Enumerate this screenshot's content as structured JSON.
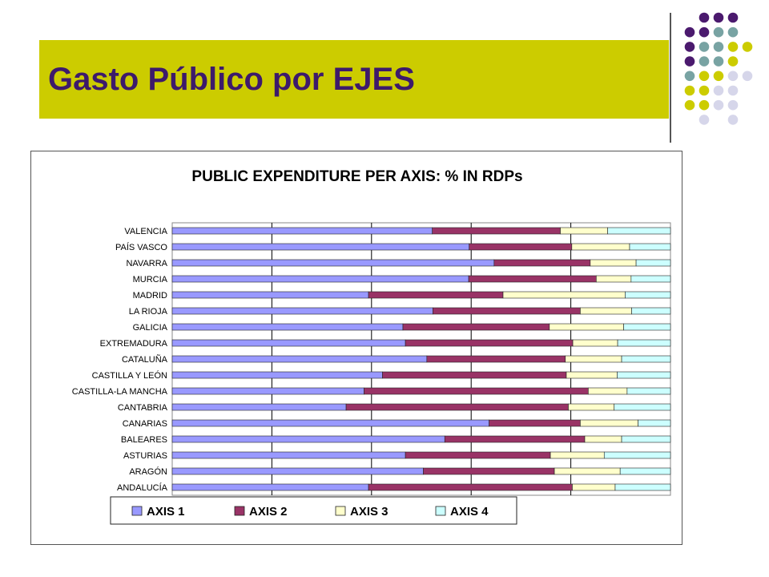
{
  "slide": {
    "title": "Gasto Público por EJES",
    "colors": {
      "band": "#cccc00",
      "title": "#3d1a6b",
      "dot_purple": "#4b1a6e",
      "dot_teal": "#78a3a3",
      "dot_yellow": "#cccc00",
      "dot_lavender": "#d6d6ea"
    }
  },
  "chart_data": {
    "type": "bar",
    "orientation": "horizontal",
    "stacked": "percent",
    "title": "PUBLIC EXPENDITURE PER AXIS: % IN RDPs",
    "xlim": [
      0,
      100
    ],
    "grid": true,
    "legend": "bottom",
    "categories": [
      "VALENCIA",
      "PAÍS VASCO",
      "NAVARRA",
      "MURCIA",
      "MADRID",
      "LA RIOJA",
      "GALICIA",
      "EXTREMADURA",
      "CATALUÑA",
      "CASTILLA Y LEÓN",
      "CASTILLA-LA MANCHA",
      "CANTABRIA",
      "CANARIAS",
      "BALEARES",
      "ASTURIAS",
      "ARAGÓN",
      "ANDALUCÍA"
    ],
    "series": [
      {
        "name": "AXIS 1",
        "color": "#9999ff",
        "values": [
          52.2,
          59.6,
          64.6,
          59.5,
          39.4,
          52.3,
          46.3,
          46.8,
          51.1,
          42.2,
          38.5,
          34.9,
          63.6,
          54.7,
          46.8,
          50.4,
          39.4
        ]
      },
      {
        "name": "AXIS 2",
        "color": "#993366",
        "values": [
          25.7,
          20.6,
          19.3,
          25.6,
          27.0,
          29.6,
          29.4,
          33.6,
          27.8,
          36.9,
          45.0,
          44.6,
          18.3,
          28.1,
          29.1,
          26.3,
          40.9
        ]
      },
      {
        "name": "AXIS 3",
        "color": "#ffffcc",
        "values": [
          9.5,
          11.6,
          9.2,
          7.0,
          24.5,
          10.3,
          14.9,
          9.0,
          11.3,
          10.2,
          7.8,
          9.2,
          11.6,
          7.4,
          10.8,
          13.2,
          8.6
        ]
      },
      {
        "name": "AXIS 4",
        "color": "#ccffff",
        "values": [
          12.6,
          8.2,
          6.9,
          7.9,
          9.1,
          7.8,
          9.4,
          10.6,
          9.8,
          10.7,
          8.7,
          11.3,
          6.5,
          9.8,
          13.3,
          10.1,
          11.1
        ]
      }
    ]
  }
}
